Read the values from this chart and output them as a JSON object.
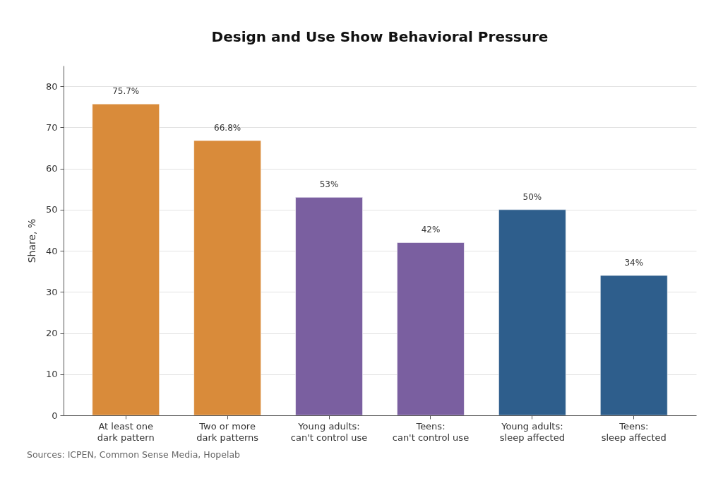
{
  "chart_data": {
    "type": "bar",
    "title": "Design and Use Show Behavioral Pressure",
    "ylabel": "Share, %",
    "categories": [
      "At least one\ndark pattern",
      "Two or more\ndark patterns",
      "Young adults:\ncan't control use",
      "Teens:\ncan't control use",
      "Young adults:\nsleep affected",
      "Teens:\nsleep affected"
    ],
    "values": [
      75.7,
      66.8,
      53,
      42,
      50,
      34
    ],
    "colors": [
      "#d98b3a",
      "#d98b3a",
      "#7a5fa0",
      "#7a5fa0",
      "#2e5e8c",
      "#2e5e8c"
    ],
    "value_labels": [
      "75.7%",
      "66.8%",
      "53%",
      "42%",
      "50%",
      "34%"
    ],
    "ylim": [
      0,
      85
    ],
    "yticks": [
      0,
      10,
      20,
      30,
      40,
      50,
      60,
      70,
      80
    ],
    "grid": "y",
    "annotations": [
      "Sources: ICPEN, Common Sense Media, Hopelab"
    ]
  }
}
